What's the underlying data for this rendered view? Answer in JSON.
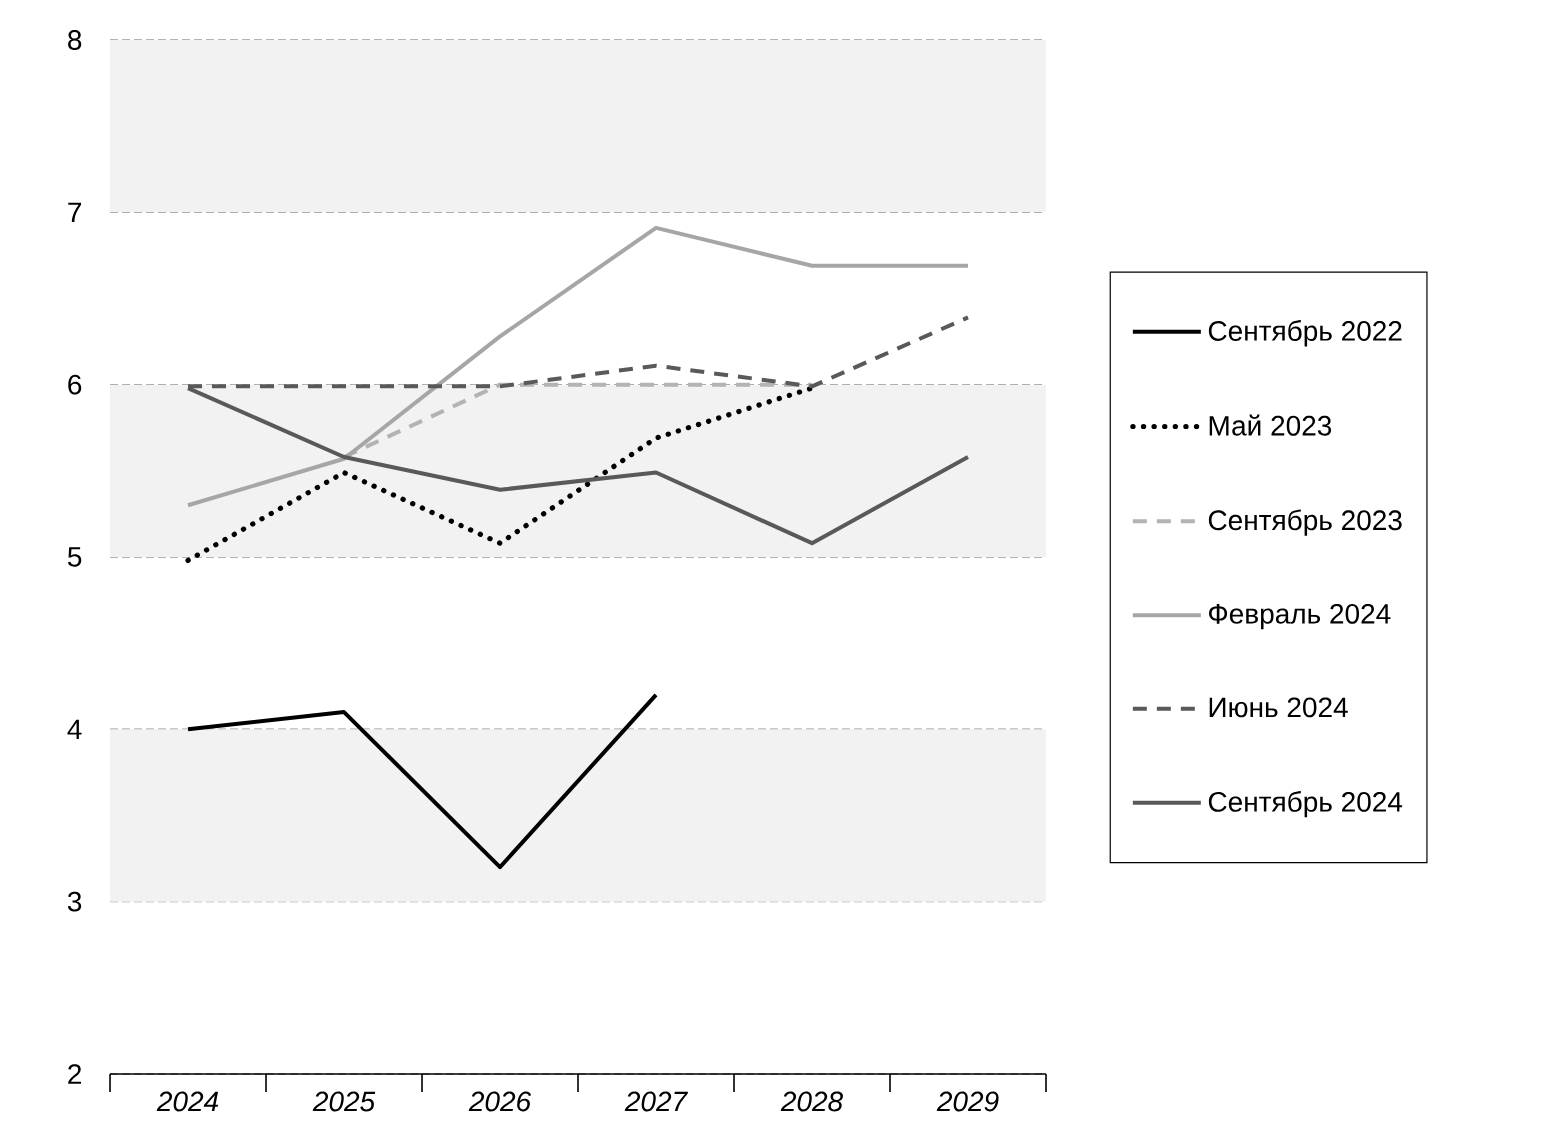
{
  "chart_data": {
    "type": "line",
    "categories": [
      "2024",
      "2025",
      "2026",
      "2027",
      "2028",
      "2029"
    ],
    "series": [
      {
        "name": "Сентябрь 2022",
        "color": "#000000",
        "line_style": "solid",
        "values": [
          4.0,
          4.1,
          3.2,
          4.2,
          null,
          null
        ]
      },
      {
        "name": "Май 2023",
        "color": "#000000",
        "line_style": "dotted",
        "values": [
          4.98,
          5.49,
          5.08,
          5.69,
          5.98,
          null
        ]
      },
      {
        "name": "Сентябрь 2023",
        "color": "#b3b3b3",
        "line_style": "dashed",
        "values": [
          null,
          5.58,
          6.0,
          6.0,
          6.0,
          null
        ]
      },
      {
        "name": "Февраль 2024",
        "color": "#a6a6a6",
        "line_style": "solid",
        "values": [
          5.3,
          5.57,
          6.28,
          6.91,
          6.69,
          6.69
        ]
      },
      {
        "name": "Июнь 2024",
        "color": "#595959",
        "line_style": "dashed",
        "values": [
          5.99,
          5.99,
          5.99,
          6.11,
          5.99,
          6.39
        ]
      },
      {
        "name": "Сентябрь 2024",
        "color": "#595959",
        "line_style": "solid",
        "values": [
          5.98,
          5.58,
          5.39,
          5.49,
          5.08,
          5.58
        ]
      }
    ],
    "ylim": [
      2,
      8
    ],
    "yticks": [
      2,
      3,
      4,
      5,
      6,
      7,
      8
    ],
    "grid": "y",
    "legend": "right",
    "marker": "none",
    "bands": [
      {
        "axis": "y",
        "from": 7,
        "to": 8,
        "color": "#f2f2f2"
      },
      {
        "axis": "y",
        "from": 5,
        "to": 6,
        "color": "#f2f2f2"
      },
      {
        "axis": "y",
        "from": 3,
        "to": 4,
        "color": "#f2f2f2"
      }
    ]
  }
}
